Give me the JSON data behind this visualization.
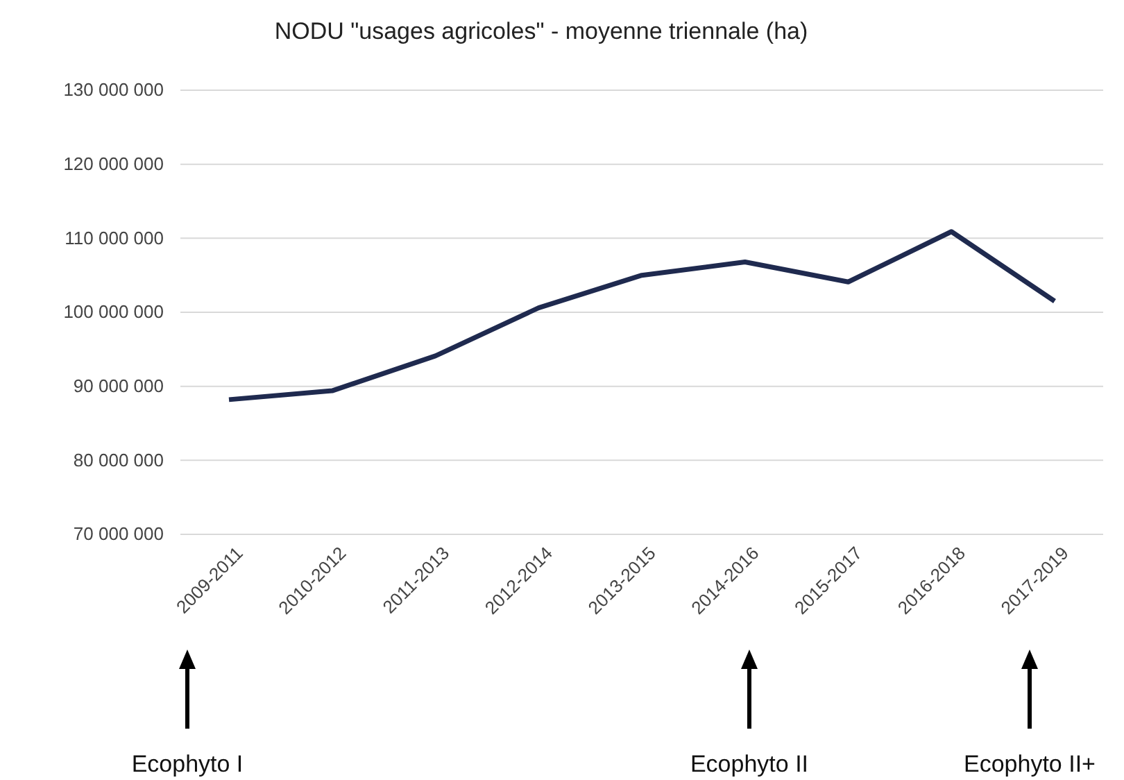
{
  "chart_data": {
    "type": "line",
    "title": "NODU \"usages agricoles\" - moyenne triennale (ha)",
    "categories": [
      "2009-2011",
      "2010-2012",
      "2011-2013",
      "2012-2014",
      "2013-2015",
      "2014-2016",
      "2015-2017",
      "2016-2018",
      "2017-2019"
    ],
    "series": [
      {
        "color": "#1f2a4f",
        "values": [
          88200000,
          89400000,
          94100000,
          100600000,
          105000000,
          106800000,
          104100000,
          110900000,
          101500000
        ]
      }
    ],
    "ylim": [
      70000000,
      130000000
    ],
    "yticks": [
      {
        "value": 70000000,
        "label": "70 000 000"
      },
      {
        "value": 80000000,
        "label": "80 000 000"
      },
      {
        "value": 90000000,
        "label": "90 000 000"
      },
      {
        "value": 100000000,
        "label": "100 000 000"
      },
      {
        "value": 110000000,
        "label": "110 000 000"
      },
      {
        "value": 120000000,
        "label": "120 000 000"
      },
      {
        "value": 130000000,
        "label": "130 000 000"
      }
    ],
    "grid": "y",
    "marker": "none",
    "line_style": "solid",
    "annotations": [
      "Ecophyto I",
      "Ecophyto II",
      "Ecophyto II+"
    ]
  }
}
